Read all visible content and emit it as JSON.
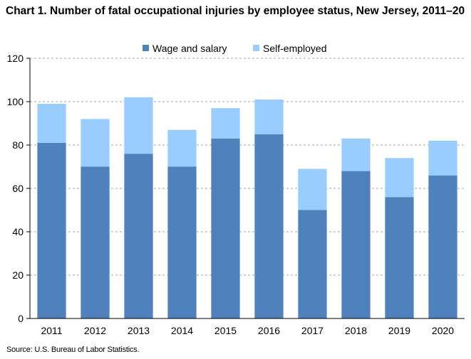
{
  "chart_data": {
    "type": "bar",
    "stacked": true,
    "title": "Chart 1. Number of fatal occupational injuries by employee status, New Jersey, 2011–20",
    "xlabel": "",
    "ylabel": "",
    "categories": [
      "2011",
      "2012",
      "2013",
      "2014",
      "2015",
      "2016",
      "2017",
      "2018",
      "2019",
      "2020"
    ],
    "series": [
      {
        "name": "Wage and salary",
        "color": "#4f81bd",
        "values": [
          81,
          70,
          76,
          70,
          83,
          85,
          50,
          68,
          56,
          66
        ]
      },
      {
        "name": "Self-employed",
        "color": "#99ccff",
        "values": [
          18,
          22,
          26,
          17,
          14,
          16,
          19,
          15,
          18,
          16
        ]
      }
    ],
    "ylim": [
      0,
      120
    ],
    "yticks": [
      "0",
      "20",
      "40",
      "60",
      "80",
      "100",
      "120"
    ],
    "grid": true,
    "legend_position": "top-center"
  },
  "source_note": "Source: U.S. Bureau of Labor Statistics."
}
